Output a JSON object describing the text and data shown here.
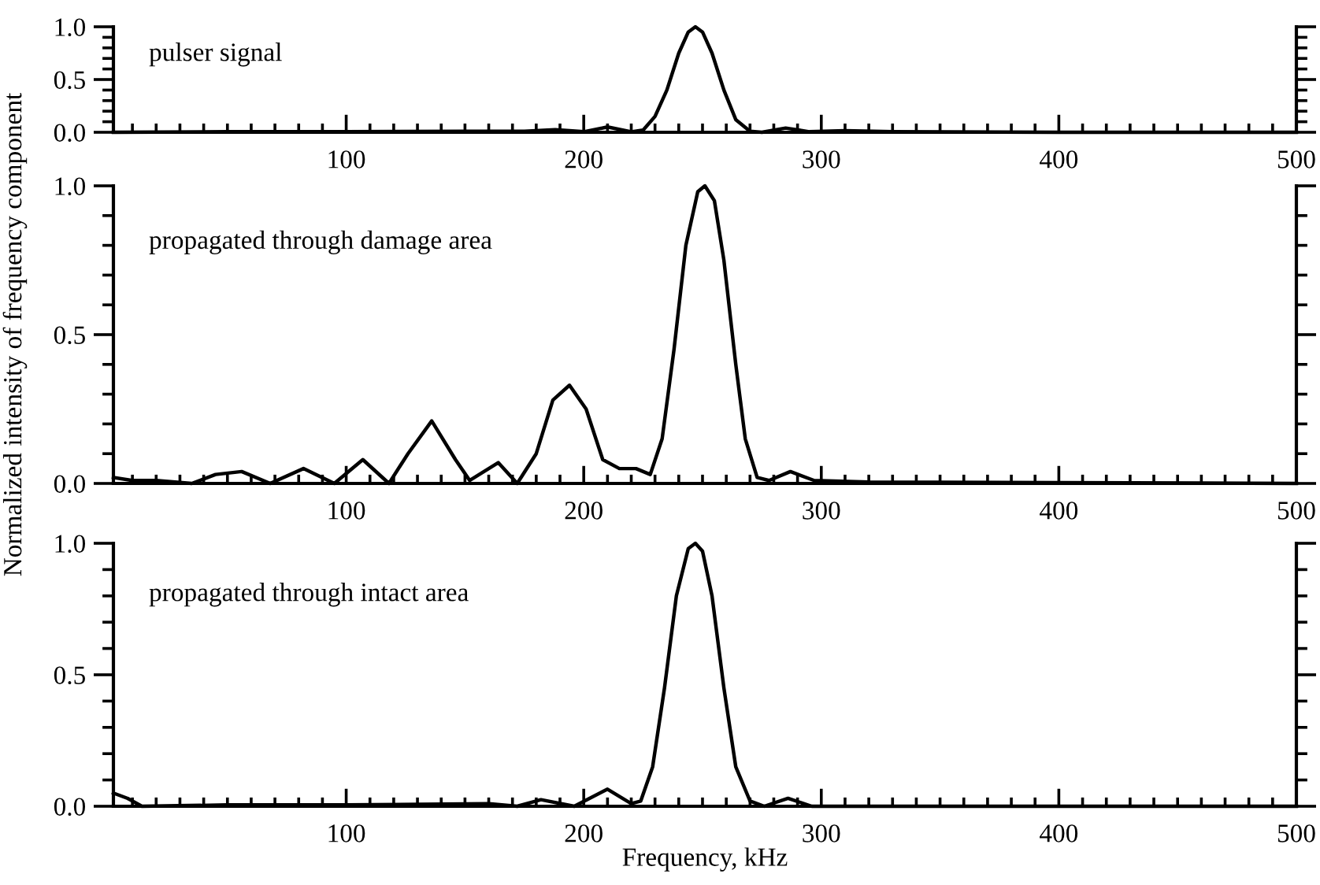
{
  "chart_data": [
    {
      "type": "line",
      "title": "pulser signal",
      "xlim": [
        2,
        500
      ],
      "ylim": [
        0,
        1.0
      ],
      "xticks": [
        100,
        200,
        300,
        400,
        500
      ],
      "yticks": [
        {
          "value": 0,
          "label": "0.0"
        },
        {
          "value": 0.5,
          "label": "0.5"
        },
        {
          "value": 1,
          "label": "1.0"
        }
      ],
      "grid": false,
      "legend": false,
      "series": [
        {
          "color": "#000000",
          "x": [
            2,
            50,
            100,
            150,
            175,
            188,
            200,
            210,
            220,
            225,
            230,
            235,
            240,
            244,
            247,
            250,
            254,
            259,
            264,
            270,
            275,
            285,
            295,
            310,
            330,
            400,
            500
          ],
          "values": [
            0,
            0.005,
            0.005,
            0.01,
            0.01,
            0.025,
            0.005,
            0.05,
            0.005,
            0.02,
            0.15,
            0.4,
            0.75,
            0.95,
            1.0,
            0.95,
            0.75,
            0.4,
            0.12,
            0.01,
            0,
            0.04,
            0.005,
            0.015,
            0.005,
            0,
            0
          ]
        }
      ]
    },
    {
      "type": "line",
      "title": "propagated through damage area",
      "ylabel": "Normalized intensity of frequency component",
      "xlim": [
        2,
        500
      ],
      "ylim": [
        0,
        1.0
      ],
      "xticks": [
        100,
        200,
        300,
        400,
        500
      ],
      "yticks": [
        {
          "value": 0,
          "label": "0.0"
        },
        {
          "value": 0.5,
          "label": "0.5"
        },
        {
          "value": 1,
          "label": "1.0"
        }
      ],
      "grid": false,
      "legend": false,
      "series": [
        {
          "color": "#000000",
          "x": [
            2,
            10,
            20,
            35,
            45,
            56,
            68,
            82,
            95,
            107,
            118,
            126,
            136,
            146,
            152,
            164,
            172,
            180,
            187,
            194,
            201,
            208,
            215,
            222,
            228,
            233,
            238,
            243,
            248,
            251,
            255,
            259,
            264,
            268,
            273,
            278,
            287,
            297,
            320,
            400,
            500
          ],
          "values": [
            0.02,
            0.01,
            0.01,
            0,
            0.03,
            0.04,
            0,
            0.05,
            0,
            0.08,
            0,
            0.1,
            0.21,
            0.08,
            0.01,
            0.07,
            0,
            0.1,
            0.28,
            0.33,
            0.25,
            0.08,
            0.05,
            0.05,
            0.03,
            0.15,
            0.45,
            0.8,
            0.98,
            1.0,
            0.95,
            0.75,
            0.4,
            0.15,
            0.02,
            0.01,
            0.04,
            0.01,
            0.005,
            0.003,
            0
          ]
        }
      ]
    },
    {
      "type": "line",
      "title": "propagated through intact area",
      "xlabel": "Frequency, kHz",
      "xlim": [
        2,
        500
      ],
      "ylim": [
        0,
        1.0
      ],
      "xticks": [
        100,
        200,
        300,
        400,
        500
      ],
      "yticks": [
        {
          "value": 0,
          "label": "0.0"
        },
        {
          "value": 0.5,
          "label": "0.5"
        },
        {
          "value": 1,
          "label": "1.0"
        }
      ],
      "grid": false,
      "legend": false,
      "series": [
        {
          "color": "#000000",
          "x": [
            2,
            8,
            14,
            50,
            100,
            160,
            172,
            182,
            196,
            210,
            220,
            224,
            229,
            234,
            239,
            244,
            247,
            250,
            254,
            259,
            264,
            270,
            276,
            286,
            296,
            500
          ],
          "values": [
            0.05,
            0.03,
            0,
            0.005,
            0.005,
            0.01,
            0,
            0.025,
            0,
            0.065,
            0.01,
            0.02,
            0.15,
            0.45,
            0.8,
            0.98,
            1.0,
            0.97,
            0.8,
            0.45,
            0.15,
            0.02,
            0,
            0.03,
            0,
            0
          ]
        }
      ]
    }
  ]
}
